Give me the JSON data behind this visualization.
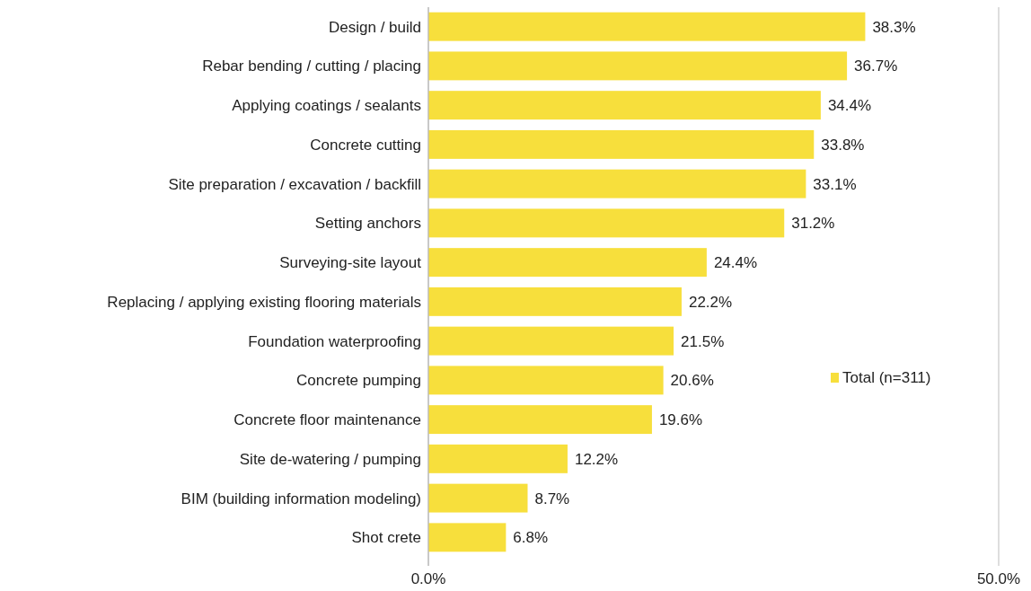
{
  "chart_data": {
    "type": "bar",
    "orientation": "horizontal",
    "categories": [
      "Design / build",
      "Rebar bending / cutting / placing",
      "Applying coatings / sealants",
      "Concrete cutting",
      "Site preparation / excavation / backfill",
      "Setting anchors",
      "Surveying-site layout",
      "Replacing / applying existing flooring materials",
      "Foundation waterproofing",
      "Concrete pumping",
      "Concrete floor maintenance",
      "Site de-watering / pumping",
      "BIM (building information modeling)",
      "Shot crete"
    ],
    "series": [
      {
        "name": "Total (n=311)",
        "color": "#f7df3c",
        "values": [
          38.3,
          36.7,
          34.4,
          33.8,
          33.1,
          31.2,
          24.4,
          22.2,
          21.5,
          20.6,
          19.6,
          12.2,
          8.7,
          6.8
        ],
        "value_labels": [
          "38.3%",
          "36.7%",
          "34.4%",
          "33.8%",
          "33.1%",
          "31.2%",
          "24.4%",
          "22.2%",
          "21.5%",
          "20.6%",
          "19.6%",
          "12.2%",
          "8.7%",
          "6.8%"
        ]
      }
    ],
    "xlim": [
      0,
      50
    ],
    "xticks": [
      {
        "value": 0,
        "label": "0.0%"
      },
      {
        "value": 50,
        "label": "50.0%"
      }
    ],
    "grid": "x",
    "legend": "right"
  }
}
